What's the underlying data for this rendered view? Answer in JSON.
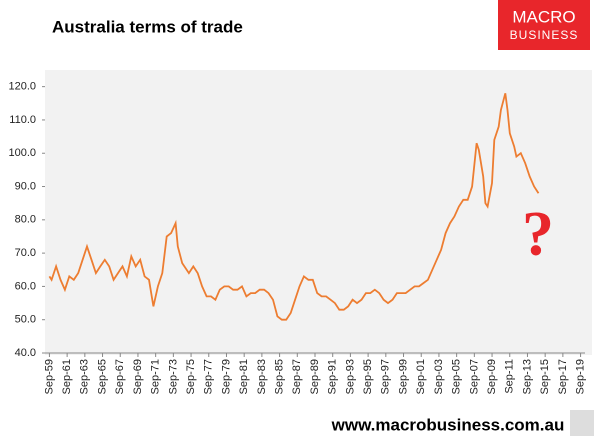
{
  "chart_data": {
    "type": "line",
    "title": "Australia terms of trade",
    "logo": [
      "MACRO",
      "BUSINESS"
    ],
    "annotation": "?",
    "footer": "www.macrobusiness.com.au",
    "xlim": [
      1959.25,
      2020.25
    ],
    "xticks": [
      {
        "value": 1959.75,
        "label": "Sep-59"
      },
      {
        "value": 1961.75,
        "label": "Sep-61"
      },
      {
        "value": 1963.75,
        "label": "Sep-63"
      },
      {
        "value": 1965.75,
        "label": "Sep-65"
      },
      {
        "value": 1967.75,
        "label": "Sep-67"
      },
      {
        "value": 1969.75,
        "label": "Sep-69"
      },
      {
        "value": 1971.75,
        "label": "Sep-71"
      },
      {
        "value": 1973.75,
        "label": "Sep-73"
      },
      {
        "value": 1975.75,
        "label": "Sep-75"
      },
      {
        "value": 1977.75,
        "label": "Sep-77"
      },
      {
        "value": 1979.75,
        "label": "Sep-79"
      },
      {
        "value": 1981.75,
        "label": "Sep-81"
      },
      {
        "value": 1983.75,
        "label": "Sep-83"
      },
      {
        "value": 1985.75,
        "label": "Sep-85"
      },
      {
        "value": 1987.75,
        "label": "Sep-87"
      },
      {
        "value": 1989.75,
        "label": "Sep-89"
      },
      {
        "value": 1991.75,
        "label": "Sep-91"
      },
      {
        "value": 1993.75,
        "label": "Sep-93"
      },
      {
        "value": 1995.75,
        "label": "Sep-95"
      },
      {
        "value": 1997.75,
        "label": "Sep-97"
      },
      {
        "value": 1999.75,
        "label": "Sep-99"
      },
      {
        "value": 2001.75,
        "label": "Sep-01"
      },
      {
        "value": 2003.75,
        "label": "Sep-03"
      },
      {
        "value": 2005.75,
        "label": "Sep-05"
      },
      {
        "value": 2007.75,
        "label": "Sep-07"
      },
      {
        "value": 2009.75,
        "label": "Sep-09"
      },
      {
        "value": 2011.75,
        "label": "Sep-11"
      },
      {
        "value": 2013.75,
        "label": "Sep-13"
      },
      {
        "value": 2015.75,
        "label": "Sep-15"
      },
      {
        "value": 2017.75,
        "label": "Sep-17"
      },
      {
        "value": 2019.75,
        "label": "Sep-19"
      }
    ],
    "ylim": [
      40,
      125
    ],
    "yticks": [
      {
        "value": 40,
        "label": "40.0"
      },
      {
        "value": 50,
        "label": "50.0"
      },
      {
        "value": 60,
        "label": "60.0"
      },
      {
        "value": 70,
        "label": "70.0"
      },
      {
        "value": 80,
        "label": "80.0"
      },
      {
        "value": 90,
        "label": "90.0"
      },
      {
        "value": 100,
        "label": "100.0"
      },
      {
        "value": 110,
        "label": "110.0"
      },
      {
        "value": 120,
        "label": "120.0"
      }
    ],
    "series": [
      {
        "name": "Terms of trade",
        "color": "#ed7d31",
        "x": [
          1959.75,
          1960,
          1960.5,
          1961,
          1961.5,
          1962,
          1962.5,
          1963,
          1963.5,
          1964,
          1964.5,
          1965,
          1965.5,
          1966,
          1966.5,
          1967,
          1967.5,
          1968,
          1968.5,
          1969,
          1969.5,
          1970,
          1970.5,
          1971,
          1971.5,
          1972,
          1972.5,
          1973,
          1973.5,
          1974,
          1974.25,
          1974.75,
          1975.5,
          1976,
          1976.5,
          1977,
          1977.5,
          1978,
          1978.5,
          1979,
          1979.5,
          1980,
          1980.5,
          1981,
          1981.5,
          1982,
          1982.5,
          1983,
          1983.5,
          1984,
          1984.5,
          1985,
          1985.5,
          1986,
          1986.5,
          1987,
          1987.5,
          1988,
          1988.5,
          1989,
          1989.5,
          1990,
          1990.5,
          1991,
          1991.5,
          1992,
          1992.5,
          1993,
          1993.5,
          1994,
          1994.5,
          1995,
          1995.5,
          1996,
          1996.5,
          1997,
          1997.5,
          1998,
          1998.5,
          1999,
          1999.5,
          2000,
          2000.5,
          2001,
          2001.5,
          2002,
          2002.5,
          2003,
          2003.5,
          2004,
          2004.5,
          2005,
          2005.5,
          2006,
          2006.5,
          2007,
          2007.5,
          2008,
          2008.25,
          2008.75,
          2009,
          2009.25,
          2009.75,
          2010,
          2010.5,
          2010.75,
          2011.25,
          2011.5,
          2011.75,
          2012.25,
          2012.5,
          2013,
          2013.5,
          2014,
          2014.5,
          2015
        ],
        "values": [
          63,
          62,
          66,
          62,
          59,
          63,
          62,
          64,
          68,
          72,
          68,
          64,
          66,
          68,
          66,
          62,
          64,
          66,
          63,
          69,
          66,
          68,
          63,
          62,
          54,
          60,
          64,
          75,
          76,
          79,
          72,
          67,
          64,
          66,
          64,
          60,
          57,
          57,
          56,
          59,
          60,
          60,
          59,
          59,
          60,
          57,
          58,
          58,
          59,
          59,
          58,
          56,
          51,
          50,
          50,
          52,
          56,
          60,
          63,
          62,
          62,
          58,
          57,
          57,
          56,
          55,
          53,
          53,
          54,
          56,
          55,
          56,
          58,
          58,
          59,
          58,
          56,
          55,
          56,
          58,
          58,
          58,
          59,
          60,
          60,
          61,
          62,
          65,
          68,
          71,
          76,
          79,
          81,
          84,
          86,
          86,
          90,
          103,
          101,
          93,
          85,
          84,
          91,
          104,
          108,
          113,
          118,
          113,
          106,
          102,
          99,
          100,
          97,
          93,
          90,
          88
        ]
      }
    ]
  }
}
